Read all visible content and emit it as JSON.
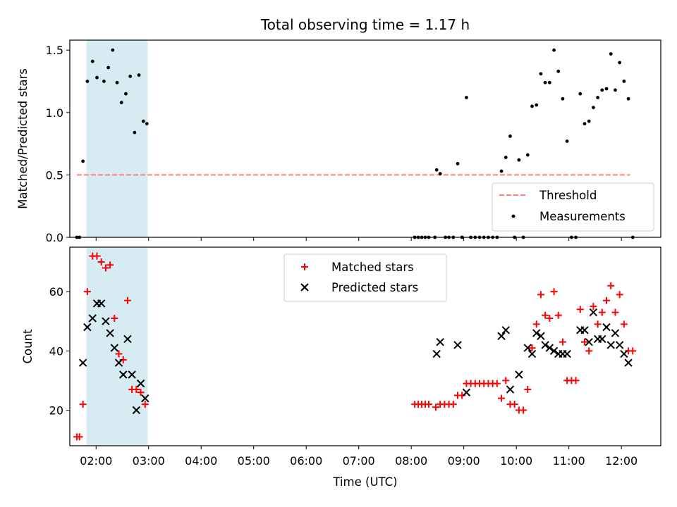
{
  "figure": {
    "title": "Total observing time = 1.17 h"
  },
  "colors": {
    "shade": "#add8e6",
    "threshold": "#ff7f7f",
    "measurement": "#000000",
    "matched": "#ff0000",
    "predicted": "#000000"
  },
  "chart_data": [
    {
      "type": "scatter",
      "title": "Total observing time = 1.17 h",
      "xlabel": "",
      "ylabel": "Matched/Predicted stars",
      "xlim": [
        "01:30",
        "12:45"
      ],
      "ylim": [
        0,
        1.58
      ],
      "yticks": [
        0.0,
        0.5,
        1.0,
        1.5
      ],
      "ytick_labels": [
        "0.0",
        "0.5",
        "1.0",
        "1.5"
      ],
      "shaded_interval": [
        "01:49",
        "02:59"
      ],
      "legend": {
        "position": "lower-right",
        "entries": [
          "Threshold",
          "Measurements"
        ]
      },
      "threshold": {
        "name": "Threshold",
        "value": 0.5,
        "x": [
          "01:38",
          "12:10"
        ]
      },
      "series": [
        {
          "name": "Measurements",
          "points": [
            [
              "01:38",
              0
            ],
            [
              "01:41",
              0
            ],
            [
              "01:45",
              0.61
            ],
            [
              "01:50",
              1.25
            ],
            [
              "01:56",
              1.41
            ],
            [
              "02:01",
              1.28
            ],
            [
              "02:09",
              1.25
            ],
            [
              "02:14",
              1.36
            ],
            [
              "02:19",
              1.5
            ],
            [
              "02:24",
              1.24
            ],
            [
              "02:29",
              1.08
            ],
            [
              "02:34",
              1.15
            ],
            [
              "02:39",
              1.29
            ],
            [
              "02:44",
              0.84
            ],
            [
              "02:49",
              1.3
            ],
            [
              "02:54",
              0.93
            ],
            [
              "02:58",
              0.91
            ],
            [
              "08:04",
              0
            ],
            [
              "08:08",
              0
            ],
            [
              "08:12",
              0
            ],
            [
              "08:16",
              0
            ],
            [
              "08:20",
              0
            ],
            [
              "08:27",
              0
            ],
            [
              "08:29",
              0.54
            ],
            [
              "08:33",
              0.51
            ],
            [
              "08:39",
              0
            ],
            [
              "08:43",
              0
            ],
            [
              "08:48",
              0
            ],
            [
              "08:53",
              0.59
            ],
            [
              "08:58",
              0
            ],
            [
              "09:03",
              1.12
            ],
            [
              "09:08",
              0
            ],
            [
              "09:13",
              0
            ],
            [
              "09:18",
              0
            ],
            [
              "09:23",
              0
            ],
            [
              "09:28",
              0
            ],
            [
              "09:33",
              0
            ],
            [
              "09:38",
              0
            ],
            [
              "09:43",
              0.53
            ],
            [
              "09:48",
              0.64
            ],
            [
              "09:53",
              0.81
            ],
            [
              "09:58",
              0
            ],
            [
              "10:03",
              0.62
            ],
            [
              "10:08",
              0
            ],
            [
              "10:13",
              0.66
            ],
            [
              "10:18",
              1.05
            ],
            [
              "10:23",
              1.06
            ],
            [
              "10:28",
              1.31
            ],
            [
              "10:33",
              1.24
            ],
            [
              "10:38",
              1.24
            ],
            [
              "10:43",
              1.5
            ],
            [
              "10:48",
              1.33
            ],
            [
              "10:53",
              1.11
            ],
            [
              "10:58",
              0.77
            ],
            [
              "11:03",
              0
            ],
            [
              "11:08",
              0
            ],
            [
              "11:13",
              1.15
            ],
            [
              "11:18",
              0.91
            ],
            [
              "11:23",
              0.93
            ],
            [
              "11:28",
              1.04
            ],
            [
              "11:33",
              1.12
            ],
            [
              "11:38",
              1.18
            ],
            [
              "11:43",
              1.19
            ],
            [
              "11:48",
              1.47
            ],
            [
              "11:53",
              1.18
            ],
            [
              "11:58",
              1.4
            ],
            [
              "12:03",
              1.25
            ],
            [
              "12:08",
              1.11
            ],
            [
              "12:13",
              0
            ]
          ]
        }
      ]
    },
    {
      "type": "scatter",
      "title": "",
      "xlabel": "Time (UTC)",
      "ylabel": "Count",
      "xlim": [
        "01:30",
        "12:45"
      ],
      "ylim": [
        8,
        75
      ],
      "xticks": [
        "02:00",
        "03:00",
        "04:00",
        "05:00",
        "06:00",
        "07:00",
        "08:00",
        "09:00",
        "10:00",
        "11:00",
        "12:00"
      ],
      "yticks": [
        20,
        40,
        60
      ],
      "ytick_labels": [
        "20",
        "40",
        "60"
      ],
      "shaded_interval": [
        "01:49",
        "02:59"
      ],
      "legend": {
        "position": "upper-center",
        "entries": [
          "Matched stars",
          "Predicted stars"
        ]
      },
      "series": [
        {
          "name": "Matched stars",
          "marker": "plus",
          "points": [
            [
              "01:38",
              11
            ],
            [
              "01:41",
              11
            ],
            [
              "01:45",
              22
            ],
            [
              "01:50",
              60
            ],
            [
              "01:56",
              72
            ],
            [
              "02:01",
              72
            ],
            [
              "02:06",
              70
            ],
            [
              "02:11",
              68
            ],
            [
              "02:16",
              69
            ],
            [
              "02:21",
              51
            ],
            [
              "02:26",
              39
            ],
            [
              "02:31",
              37
            ],
            [
              "02:36",
              57
            ],
            [
              "02:41",
              27
            ],
            [
              "02:46",
              27
            ],
            [
              "02:51",
              26
            ],
            [
              "02:56",
              22
            ],
            [
              "08:04",
              22
            ],
            [
              "08:08",
              22
            ],
            [
              "08:12",
              22
            ],
            [
              "08:16",
              22
            ],
            [
              "08:20",
              22
            ],
            [
              "08:28",
              21
            ],
            [
              "08:33",
              22
            ],
            [
              "08:38",
              22
            ],
            [
              "08:43",
              22
            ],
            [
              "08:48",
              22
            ],
            [
              "08:53",
              25
            ],
            [
              "08:58",
              25
            ],
            [
              "09:03",
              29
            ],
            [
              "09:08",
              29
            ],
            [
              "09:13",
              29
            ],
            [
              "09:18",
              29
            ],
            [
              "09:23",
              29
            ],
            [
              "09:28",
              29
            ],
            [
              "09:33",
              29
            ],
            [
              "09:38",
              29
            ],
            [
              "09:43",
              24
            ],
            [
              "09:48",
              30
            ],
            [
              "09:53",
              22
            ],
            [
              "09:58",
              22
            ],
            [
              "10:03",
              20
            ],
            [
              "10:08",
              20
            ],
            [
              "10:13",
              27
            ],
            [
              "10:18",
              41
            ],
            [
              "10:23",
              49
            ],
            [
              "10:28",
              59
            ],
            [
              "10:33",
              52
            ],
            [
              "10:38",
              51
            ],
            [
              "10:43",
              60
            ],
            [
              "10:48",
              52
            ],
            [
              "10:53",
              43
            ],
            [
              "10:58",
              30
            ],
            [
              "11:03",
              30
            ],
            [
              "11:08",
              30
            ],
            [
              "11:13",
              54
            ],
            [
              "11:18",
              43
            ],
            [
              "11:23",
              40
            ],
            [
              "11:28",
              55
            ],
            [
              "11:33",
              49
            ],
            [
              "11:38",
              53
            ],
            [
              "11:43",
              57
            ],
            [
              "11:48",
              62
            ],
            [
              "11:53",
              53
            ],
            [
              "11:58",
              59
            ],
            [
              "12:03",
              49
            ],
            [
              "12:08",
              40
            ],
            [
              "12:13",
              40
            ]
          ]
        },
        {
          "name": "Predicted stars",
          "marker": "cross",
          "points": [
            [
              "01:45",
              36
            ],
            [
              "01:50",
              48
            ],
            [
              "01:56",
              51
            ],
            [
              "02:01",
              56
            ],
            [
              "02:06",
              56
            ],
            [
              "02:11",
              50
            ],
            [
              "02:16",
              46
            ],
            [
              "02:21",
              41
            ],
            [
              "02:26",
              36
            ],
            [
              "02:31",
              32
            ],
            [
              "02:36",
              44
            ],
            [
              "02:41",
              32
            ],
            [
              "02:46",
              20
            ],
            [
              "02:51",
              29
            ],
            [
              "02:56",
              24
            ],
            [
              "08:29",
              39
            ],
            [
              "08:33",
              43
            ],
            [
              "08:53",
              42
            ],
            [
              "09:03",
              26
            ],
            [
              "09:43",
              45
            ],
            [
              "09:48",
              47
            ],
            [
              "09:53",
              27
            ],
            [
              "10:03",
              32
            ],
            [
              "10:13",
              41
            ],
            [
              "10:18",
              39
            ],
            [
              "10:23",
              46
            ],
            [
              "10:28",
              45
            ],
            [
              "10:33",
              42
            ],
            [
              "10:38",
              41
            ],
            [
              "10:43",
              40
            ],
            [
              "10:48",
              39
            ],
            [
              "10:53",
              39
            ],
            [
              "10:58",
              39
            ],
            [
              "11:13",
              47
            ],
            [
              "11:18",
              47
            ],
            [
              "11:23",
              43
            ],
            [
              "11:28",
              53
            ],
            [
              "11:33",
              44
            ],
            [
              "11:38",
              44
            ],
            [
              "11:43",
              48
            ],
            [
              "11:48",
              42
            ],
            [
              "11:53",
              46
            ],
            [
              "11:58",
              42
            ],
            [
              "12:03",
              39
            ],
            [
              "12:08",
              36
            ]
          ]
        }
      ]
    }
  ]
}
